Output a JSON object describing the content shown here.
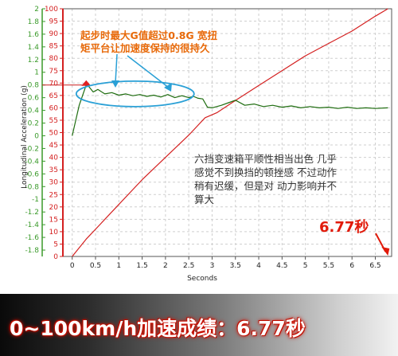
{
  "chart_data": {
    "type": "line",
    "xlabel": "Seconds",
    "left_axis_label": "Longitudinal Acceleration (g)",
    "x_ticks": [
      "0",
      "0.5",
      "1",
      "1.5",
      "2",
      "2.5",
      "3",
      "3.5",
      "4",
      "4.5",
      "5",
      "5.5",
      "6",
      "6.5"
    ],
    "x_tick_values": [
      0,
      0.5,
      1,
      1.5,
      2,
      2.5,
      3,
      3.5,
      4,
      4.5,
      5,
      5.5,
      6,
      6.5
    ],
    "xlim": [
      -0.2,
      6.85
    ],
    "left_ticks": [
      "2",
      "1.8",
      "1.6",
      "1.4",
      "1.2",
      "1",
      "0.8",
      "0.6",
      "0.4",
      "0.2",
      "0",
      "-0.2",
      "-0.4",
      "-0.6",
      "-0.8",
      "-1",
      "-1.2",
      "-1.4",
      "-1.6",
      "-1.8"
    ],
    "left_tick_values": [
      2,
      1.8,
      1.6,
      1.4,
      1.2,
      1,
      0.8,
      0.6,
      0.4,
      0.2,
      0,
      -0.2,
      -0.4,
      -0.6,
      -0.8,
      -1,
      -1.2,
      -1.4,
      -1.6,
      -1.8
    ],
    "left_ylim": [
      -1.9,
      2
    ],
    "right_ticks": [
      "100",
      "95",
      "90",
      "85",
      "80",
      "75",
      "70",
      "65",
      "60",
      "55",
      "50",
      "45",
      "40",
      "35",
      "30",
      "25",
      "20",
      "15",
      "10",
      "5",
      "0"
    ],
    "right_tick_values": [
      100,
      95,
      90,
      85,
      80,
      75,
      70,
      65,
      60,
      55,
      50,
      45,
      40,
      35,
      30,
      25,
      20,
      15,
      10,
      5,
      0
    ],
    "right_ylim": [
      0,
      100
    ],
    "grid": true,
    "series": [
      {
        "axis": "right",
        "color": "#d42020",
        "x": [
          0,
          0.3,
          0.6,
          1.0,
          1.5,
          2.0,
          2.5,
          2.85,
          3.1,
          3.5,
          4.0,
          4.5,
          5.0,
          5.5,
          6.0,
          6.5,
          6.77
        ],
        "y": [
          0,
          7,
          13,
          21,
          31,
          40,
          49,
          56,
          58,
          63,
          69,
          75,
          81,
          86,
          91,
          97,
          100
        ]
      },
      {
        "axis": "left",
        "color": "#1f6d10",
        "x": [
          0,
          0.15,
          0.3,
          0.35,
          0.45,
          0.55,
          0.7,
          0.85,
          1.0,
          1.15,
          1.3,
          1.45,
          1.6,
          1.75,
          1.9,
          2.05,
          2.2,
          2.35,
          2.5,
          2.6,
          2.7,
          2.8,
          2.9,
          3.0,
          3.1,
          3.2,
          3.35,
          3.5,
          3.7,
          3.9,
          4.1,
          4.3,
          4.5,
          4.7,
          4.9,
          5.1,
          5.3,
          5.5,
          5.7,
          5.9,
          6.1,
          6.3,
          6.5,
          6.77
        ],
        "y": [
          0.0,
          0.48,
          0.8,
          0.78,
          0.69,
          0.73,
          0.66,
          0.68,
          0.64,
          0.66,
          0.63,
          0.65,
          0.62,
          0.64,
          0.61,
          0.65,
          0.6,
          0.63,
          0.6,
          0.62,
          0.59,
          0.58,
          0.45,
          0.44,
          0.46,
          0.48,
          0.52,
          0.56,
          0.48,
          0.5,
          0.46,
          0.48,
          0.45,
          0.47,
          0.44,
          0.46,
          0.44,
          0.45,
          0.43,
          0.45,
          0.43,
          0.44,
          0.43,
          0.44
        ]
      }
    ],
    "annotations": {
      "start_note": "起步时最大G值超过0.8G 宽扭矩平台让加速度保持的很持久",
      "gear_note": "六挡变速箱平顺性相当出色 几乎感觉不到换挡的顿挫感 不过动作稍有迟缓，但是对 动力影响并不算大",
      "time_label": "6.77秒"
    },
    "colors": {
      "left_axis": "#3a9a2a",
      "right_axis": "#d42020",
      "grid": "#cfcfcf",
      "start_note": "#e86a0a",
      "callout": "#2aa0d6"
    }
  },
  "banner": {
    "text": "0~100km/h加速成绩：6.77秒"
  }
}
